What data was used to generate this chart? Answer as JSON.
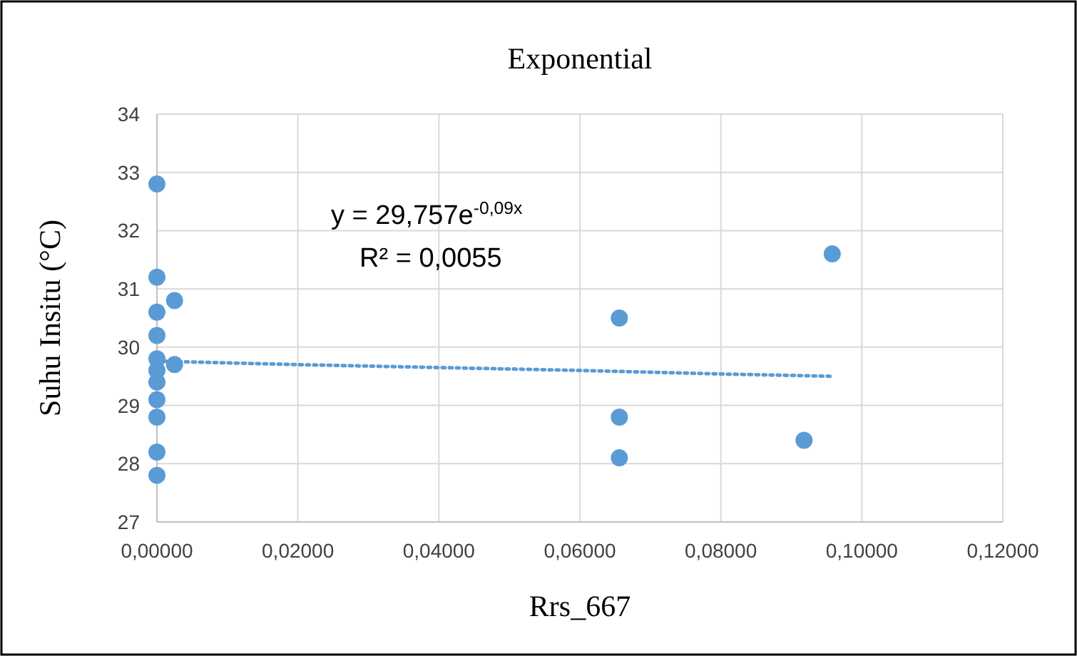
{
  "chart_data": {
    "type": "scatter",
    "title": "Exponential",
    "xlabel": "Rrs_667",
    "ylabel": "Suhu Insitu (°C)",
    "annotations": [
      "y = 29,757e$^{-0,09x}$",
      "R² = 0,0055"
    ],
    "xlim": [
      0,
      0.12
    ],
    "ylim": [
      27,
      34
    ],
    "xticks": [
      {
        "value": 0,
        "label": "0,00000"
      },
      {
        "value": 0.02,
        "label": "0,02000"
      },
      {
        "value": 0.04,
        "label": "0,04000"
      },
      {
        "value": 0.06,
        "label": "0,06000"
      },
      {
        "value": 0.08,
        "label": "0,08000"
      },
      {
        "value": 0.1,
        "label": "0,10000"
      },
      {
        "value": 0.12,
        "label": "0,12000"
      }
    ],
    "yticks": [
      27,
      28,
      29,
      30,
      31,
      32,
      33,
      34
    ],
    "grid": true,
    "series": [
      {
        "color": "#5b9bd5",
        "marker": "circle",
        "x": [
          0,
          0,
          0,
          0,
          0,
          0,
          0,
          0,
          0,
          0,
          0,
          0.0025,
          0.0025,
          0.0656,
          0.0656,
          0.0656,
          0.0918,
          0.0958
        ],
        "values": [
          32.8,
          31.2,
          30.6,
          30.2,
          29.8,
          29.6,
          29.4,
          29.1,
          28.8,
          28.2,
          27.8,
          30.8,
          29.7,
          30.5,
          28.8,
          28.1,
          28.4,
          31.6
        ]
      },
      {
        "type": "line",
        "color": "#5b9bd5",
        "marker": "none",
        "line_style": "dotted",
        "x": [
          0,
          0.02,
          0.04,
          0.06,
          0.08,
          0.0958
        ],
        "values": [
          29.76,
          29.7,
          29.65,
          29.6,
          29.54,
          29.5
        ]
      }
    ]
  }
}
